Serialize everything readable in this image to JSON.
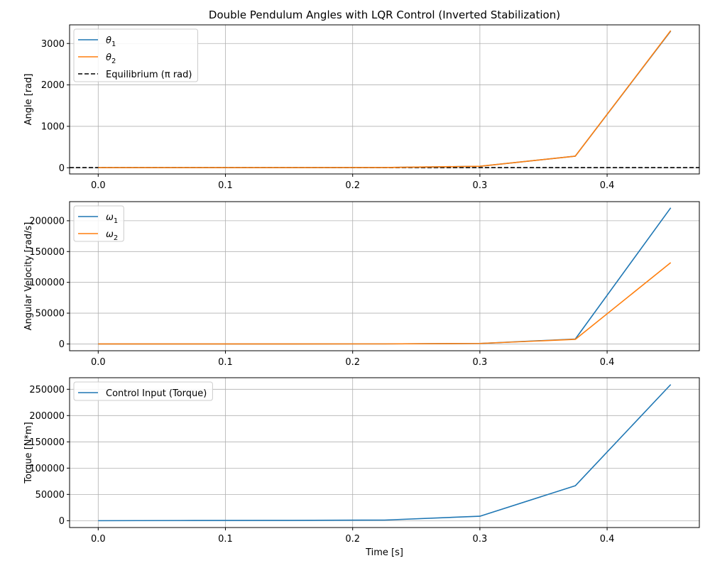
{
  "chart_data": [
    {
      "type": "line",
      "title": "Double Pendulum Angles with LQR Control (Inverted Stabilization)",
      "xlabel": "",
      "ylabel": "Angle [rad]",
      "xlim": [
        -0.0225,
        0.4725
      ],
      "ylim": [
        -150,
        3450
      ],
      "xticks": [
        "0.0",
        "0.1",
        "0.2",
        "0.3",
        "0.4"
      ],
      "xtick_values": [
        0.0,
        0.1,
        0.2,
        0.3,
        0.4
      ],
      "yticks": [
        "0",
        "1000",
        "2000",
        "3000"
      ],
      "ytick_values": [
        0,
        1000,
        2000,
        3000
      ],
      "grid": true,
      "legend_position": "upper-left",
      "x": [
        0.0,
        0.075,
        0.15,
        0.225,
        0.3,
        0.375,
        0.45
      ],
      "series": [
        {
          "name": "θ₁",
          "color": "#1f77b4",
          "values": [
            3.14,
            3.2,
            3.5,
            5,
            35,
            280,
            3300
          ]
        },
        {
          "name": "θ₂",
          "color": "#ff7f0e",
          "values": [
            3.14,
            3.2,
            3.5,
            5,
            35,
            280,
            3310
          ]
        }
      ],
      "reference_lines": [
        {
          "name": "Equilibrium (π rad)",
          "color": "#000000",
          "value": 3.14159,
          "style": "dashed"
        }
      ]
    },
    {
      "type": "line",
      "title": "",
      "xlabel": "",
      "ylabel": "Angular Velocity [rad/s]",
      "xlim": [
        -0.0225,
        0.4725
      ],
      "ylim": [
        -11000,
        231000
      ],
      "xticks": [
        "0.0",
        "0.1",
        "0.2",
        "0.3",
        "0.4"
      ],
      "xtick_values": [
        0.0,
        0.1,
        0.2,
        0.3,
        0.4
      ],
      "yticks": [
        "0",
        "50000",
        "100000",
        "150000",
        "200000"
      ],
      "ytick_values": [
        0,
        50000,
        100000,
        150000,
        200000
      ],
      "grid": true,
      "legend_position": "upper-left",
      "x": [
        0.0,
        0.075,
        0.15,
        0.225,
        0.3,
        0.375,
        0.45
      ],
      "series": [
        {
          "name": "ω₁",
          "color": "#1f77b4",
          "values": [
            0,
            10,
            30,
            100,
            800,
            8000,
            221000
          ]
        },
        {
          "name": "ω₂",
          "color": "#ff7f0e",
          "values": [
            0,
            10,
            30,
            100,
            800,
            7500,
            132000
          ]
        }
      ],
      "reference_lines": []
    },
    {
      "type": "line",
      "title": "",
      "xlabel": "Time [s]",
      "ylabel": "Torque [N*m]",
      "xlim": [
        -0.0225,
        0.4725
      ],
      "ylim": [
        -13000,
        272000
      ],
      "xticks": [
        "0.0",
        "0.1",
        "0.2",
        "0.3",
        "0.4"
      ],
      "xtick_values": [
        0.0,
        0.1,
        0.2,
        0.3,
        0.4
      ],
      "yticks": [
        "0",
        "50000",
        "100000",
        "150000",
        "200000",
        "250000"
      ],
      "ytick_values": [
        0,
        50000,
        100000,
        150000,
        200000,
        250000
      ],
      "grid": true,
      "legend_position": "upper-left",
      "x": [
        0.0,
        0.075,
        0.15,
        0.225,
        0.3,
        0.375,
        0.45
      ],
      "series": [
        {
          "name": "Control Input (Torque)",
          "color": "#1f77b4",
          "values": [
            0,
            400,
            600,
            1200,
            8500,
            66500,
            259000
          ]
        }
      ],
      "reference_lines": []
    }
  ]
}
